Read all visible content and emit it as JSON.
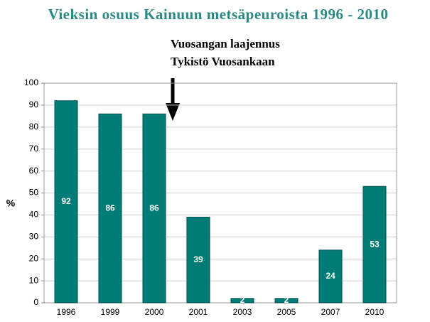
{
  "chart_data": {
    "type": "bar",
    "title": "Vieksin osuus Kainuun metsäpeuroista 1996 - 2010",
    "annotations": [
      "Vuosangan laajennus",
      "Tykistö Vuosankaan"
    ],
    "y_label": "%",
    "categories": [
      "1996",
      "1999",
      "2000",
      "2001",
      "2003",
      "2005",
      "2007",
      "2010"
    ],
    "values": [
      92,
      86,
      86,
      39,
      2,
      2,
      24,
      53
    ],
    "color": "#007c76",
    "ylim": [
      0,
      100
    ],
    "yticks": [
      0,
      10,
      20,
      30,
      40,
      50,
      60,
      70,
      80,
      90,
      100
    ],
    "grid": true
  }
}
